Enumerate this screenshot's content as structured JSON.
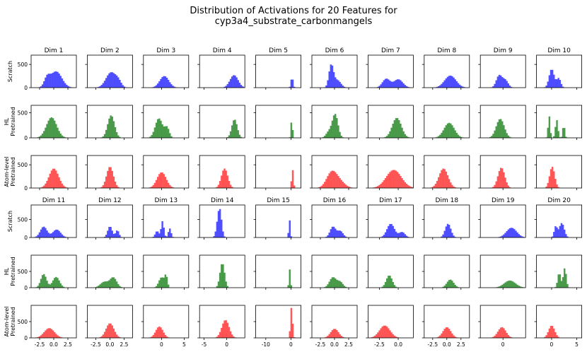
{
  "chart_data": {
    "type": "histogram-grid",
    "title_lines": [
      "Distribution of Activations for 20 Features for",
      "cyp3a4_substrate_carbonmangels"
    ],
    "colors": {
      "Scratch": "#3333ff",
      "HL Pretrained": "#2e8b2e",
      "Atom-level Pretrained": "#ff3b3b"
    },
    "row_labels": [
      {
        "line1": "",
        "line2": "Scratch",
        "color_key": "Scratch"
      },
      {
        "line1": "HL",
        "line2": "Pretrained",
        "color_key": "HL Pretrained"
      },
      {
        "line1": "Atom-level",
        "line2": "Pretrained",
        "color_key": "Atom-level Pretrained"
      }
    ],
    "groups": [
      {
        "dims": [
          "Dim 1",
          "Dim 2",
          "Dim 3",
          "Dim 4",
          "Dim 5",
          "Dim 6",
          "Dim 7",
          "Dim 8",
          "Dim 9",
          "Dim 10"
        ],
        "rows": [
          {
            "ytick": "500",
            "ymax": 700
          },
          {
            "ytick": "500",
            "ymax": 650
          },
          {
            "ytick": "500",
            "ymax": 700
          }
        ]
      },
      {
        "dims": [
          "Dim 11",
          "Dim 12",
          "Dim 13",
          "Dim 14",
          "Dim 15",
          "Dim 16",
          "Dim 17",
          "Dim 18",
          "Dim 19",
          "Dim 20"
        ],
        "rows": [
          {
            "ytick": "500",
            "ymax": 900
          },
          {
            "ytick": "500",
            "ymax": 1000
          },
          {
            "ytick": "500",
            "ymax": 1000
          }
        ]
      }
    ],
    "bottom_xticks": [
      [
        {
          "label": "-2.5",
          "value": -2.5
        },
        {
          "label": "0.0",
          "value": 0
        },
        {
          "label": "2.5",
          "value": 2.5
        }
      ],
      [
        {
          "label": "-2.5",
          "value": -2.5
        },
        {
          "label": "0.0",
          "value": 0
        },
        {
          "label": "2.5",
          "value": 2.5
        }
      ],
      [
        {
          "label": "0",
          "value": 0
        },
        {
          "label": "5",
          "value": 5
        }
      ],
      [
        {
          "label": "-5",
          "value": -5
        },
        {
          "label": "0",
          "value": 0
        }
      ],
      [
        {
          "label": "-10",
          "value": -10
        },
        {
          "label": "0",
          "value": 0
        }
      ],
      [
        {
          "label": "-2.5",
          "value": -2.5
        },
        {
          "label": "0.0",
          "value": 0
        },
        {
          "label": "2.5",
          "value": 2.5
        }
      ],
      [
        {
          "label": "-2.5",
          "value": -2.5
        },
        {
          "label": "0.0",
          "value": 0
        }
      ],
      [
        {
          "label": "-2.5",
          "value": -2.5
        },
        {
          "label": "0.0",
          "value": 0
        },
        {
          "label": "2.5",
          "value": 2.5
        }
      ],
      [
        {
          "label": "0",
          "value": 0
        }
      ],
      [
        {
          "label": "0",
          "value": 0
        },
        {
          "label": "5",
          "value": 5
        }
      ]
    ],
    "xlims": [
      [
        -4,
        4
      ],
      [
        -4,
        4
      ],
      [
        -4,
        6
      ],
      [
        -6,
        4
      ],
      [
        -14,
        4
      ],
      [
        -4,
        4
      ],
      [
        -4,
        2
      ],
      [
        -4,
        4
      ],
      [
        -4,
        4
      ],
      [
        -3,
        6
      ]
    ],
    "distributions": [
      [
        [
          0.4,
          1.0,
          350
        ],
        [
          -1.2,
          0.5,
          180
        ]
      ],
      [
        [
          0.2,
          0.9,
          330
        ],
        [
          1.5,
          0.5,
          100
        ]
      ],
      [
        [
          0.6,
          1.0,
          250
        ]
      ],
      [
        [
          1.6,
          0.9,
          270
        ]
      ],
      [
        [
          0.4,
          0.4,
          230
        ]
      ],
      [
        [
          -0.6,
          0.4,
          480
        ],
        [
          0.5,
          0.6,
          160
        ]
      ],
      [
        [
          0.0,
          0.6,
          180
        ],
        [
          -1.6,
          0.5,
          190
        ]
      ],
      [
        [
          0.6,
          1.0,
          260
        ]
      ],
      [
        [
          -0.7,
          0.5,
          260
        ],
        [
          0.4,
          0.5,
          160
        ]
      ],
      [
        [
          0.0,
          0.5,
          400
        ],
        [
          1.4,
          0.4,
          200
        ]
      ],
      [
        [
          -0.4,
          0.9,
          410
        ]
      ],
      [
        [
          0.2,
          0.6,
          450
        ]
      ],
      [
        [
          -0.6,
          0.8,
          390
        ],
        [
          1.2,
          0.5,
          200
        ]
      ],
      [
        [
          1.7,
          0.6,
          370
        ]
      ],
      [
        [
          0.3,
          0.3,
          380
        ]
      ],
      [
        [
          0.1,
          0.5,
          470
        ],
        [
          -1.0,
          0.5,
          120
        ]
      ],
      [
        [
          -0.2,
          0.6,
          400
        ]
      ],
      [
        [
          0.4,
          0.9,
          300
        ]
      ],
      [
        [
          -0.5,
          0.7,
          380
        ]
      ],
      [
        [
          -0.5,
          0.2,
          440
        ],
        [
          1.0,
          0.25,
          360
        ],
        [
          2.4,
          0.2,
          260
        ]
      ],
      [
        [
          0.0,
          0.85,
          420
        ]
      ],
      [
        [
          0.0,
          0.6,
          460
        ]
      ],
      [
        [
          0.0,
          1.0,
          340
        ]
      ],
      [
        [
          -0.5,
          0.7,
          420
        ]
      ],
      [
        [
          0.6,
          0.35,
          400
        ]
      ],
      [
        [
          -0.5,
          0.9,
          340
        ],
        [
          1.0,
          0.9,
          120
        ]
      ],
      [
        [
          -0.6,
          1.0,
          390
        ]
      ],
      [
        [
          -0.6,
          0.8,
          420
        ]
      ],
      [
        [
          -0.3,
          0.6,
          440
        ]
      ],
      [
        [
          0.1,
          0.5,
          460
        ]
      ],
      [
        [
          -1.8,
          0.6,
          300
        ],
        [
          0.5,
          0.7,
          220
        ]
      ],
      [
        [
          0.0,
          0.4,
          310
        ],
        [
          1.3,
          0.3,
          200
        ]
      ],
      [
        [
          0.2,
          0.3,
          450
        ],
        [
          -1.0,
          0.4,
          180
        ],
        [
          1.8,
          0.3,
          250
        ]
      ],
      [
        [
          -1.5,
          0.4,
          650
        ],
        [
          -2.0,
          0.4,
          300
        ]
      ],
      [
        [
          -0.6,
          0.3,
          500
        ]
      ],
      [
        [
          -0.3,
          0.5,
          300
        ],
        [
          1.0,
          0.5,
          180
        ]
      ],
      [
        [
          -1.0,
          0.5,
          380
        ],
        [
          0.5,
          0.4,
          150
        ]
      ],
      [
        [
          0.2,
          0.5,
          380
        ]
      ],
      [
        [
          1.5,
          0.9,
          270
        ]
      ],
      [
        [
          2.0,
          0.5,
          400
        ],
        [
          0.8,
          0.3,
          300
        ]
      ],
      [
        [
          -1.8,
          0.5,
          420
        ],
        [
          0.4,
          0.6,
          330
        ]
      ],
      [
        [
          -1.0,
          0.7,
          180
        ],
        [
          0.6,
          0.6,
          310
        ]
      ],
      [
        [
          0.0,
          0.6,
          320
        ],
        [
          1.0,
          0.3,
          330
        ]
      ],
      [
        [
          -1.0,
          0.5,
          760
        ]
      ],
      [
        [
          -0.5,
          0.3,
          560
        ]
      ],
      [
        [
          -0.3,
          0.6,
          320
        ],
        [
          1.0,
          0.5,
          170
        ]
      ],
      [
        [
          -1.2,
          0.4,
          380
        ]
      ],
      [
        [
          0.6,
          0.6,
          250
        ]
      ],
      [
        [
          1.2,
          1.0,
          220
        ]
      ],
      [
        [
          1.5,
          0.3,
          460
        ],
        [
          2.6,
          0.3,
          600
        ]
      ],
      [
        [
          -0.8,
          0.9,
          300
        ]
      ],
      [
        [
          0.0,
          0.7,
          450
        ]
      ],
      [
        [
          -0.5,
          0.8,
          350
        ]
      ],
      [
        [
          -0.3,
          0.8,
          550
        ]
      ],
      [
        [
          0.2,
          0.4,
          950
        ]
      ],
      [
        [
          0.0,
          0.7,
          280
        ]
      ],
      [
        [
          -1.8,
          0.7,
          380
        ]
      ],
      [
        [
          0.0,
          0.7,
          330
        ]
      ],
      [
        [
          -0.2,
          0.7,
          330
        ]
      ],
      [
        [
          0.0,
          0.6,
          380
        ]
      ]
    ]
  }
}
